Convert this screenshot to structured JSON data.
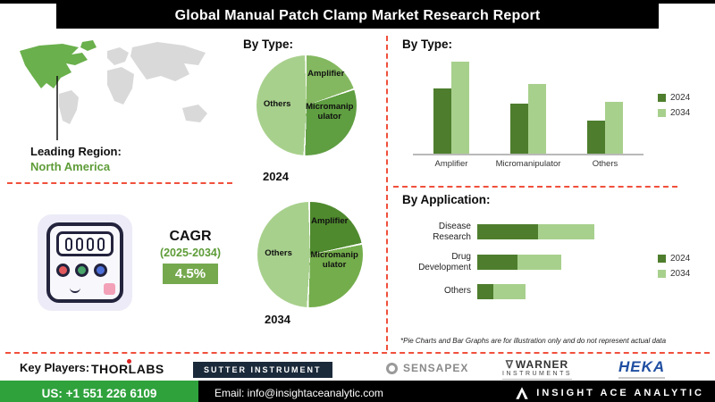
{
  "header": {
    "title": "Global Manual Patch Clamp Market Research Report"
  },
  "left": {
    "leading_region_label": "Leading Region:",
    "leading_region_value": "North America",
    "cagr_label": "CAGR",
    "cagr_period": "(2025-2034)",
    "cagr_value": "4.5%"
  },
  "sections": {
    "pies_title": "By Type:",
    "bars_title": "By Type:",
    "application_title": "By Application:",
    "disclaimer": "*Pie Charts and Bar Graphs are for illustration only and do not represent actual data"
  },
  "chart_data": [
    {
      "id": "pie_2024",
      "type": "pie",
      "title": "By Type:",
      "year_label": "2024",
      "slices": [
        {
          "label": "Amplifier",
          "value": 20,
          "color": "#84b860"
        },
        {
          "label": "Micromanipulator",
          "value": 31,
          "color": "#5f9e41"
        },
        {
          "label": "Others",
          "value": 49,
          "color": "#a8d08d"
        }
      ]
    },
    {
      "id": "pie_2034",
      "type": "pie",
      "title": "By Type:",
      "year_label": "2034",
      "slices": [
        {
          "label": "Amplifier",
          "value": 22,
          "color": "#4f8a2e"
        },
        {
          "label": "Micromanipulator",
          "value": 29,
          "color": "#74ad4c"
        },
        {
          "label": "Others",
          "value": 49,
          "color": "#a8d08d"
        }
      ]
    },
    {
      "id": "bar_by_type",
      "type": "bar",
      "title": "By Type:",
      "categories": [
        "Amplifier",
        "Micromanipulator",
        "Others"
      ],
      "series": [
        {
          "name": "2024",
          "color": "#4e7e2d",
          "values": [
            65,
            50,
            33
          ]
        },
        {
          "name": "2034",
          "color": "#a8d08d",
          "values": [
            92,
            70,
            52
          ]
        }
      ],
      "ylim": [
        0,
        100
      ],
      "grid": false,
      "legend_position": "right"
    },
    {
      "id": "bar_by_application",
      "type": "bar",
      "orientation": "horizontal",
      "title": "By Application:",
      "categories": [
        "Disease Research",
        "Drug Development",
        "Others"
      ],
      "series": [
        {
          "name": "2024",
          "color": "#4e7e2d",
          "values": [
            38,
            25,
            10
          ]
        },
        {
          "name": "2034",
          "color": "#a8d08d",
          "values": [
            35,
            27,
            20
          ]
        }
      ],
      "xlim": [
        0,
        100
      ],
      "legend_position": "right"
    }
  ],
  "key_players": {
    "label": "Key Players:",
    "brands": [
      {
        "name": "THORLABS"
      },
      {
        "name": "SUTTER INSTRUMENT"
      },
      {
        "name": "SENSAPEX"
      },
      {
        "name": "WARNER INSTRUMENTS",
        "line1": "WARNER",
        "line2": "INSTRUMENTS"
      },
      {
        "name": "HEKA"
      }
    ]
  },
  "footer": {
    "phone": "US: +1 551 226 6109",
    "email": "Email: info@insightaceanalytic.com",
    "brand": "INSIGHT ACE ANALYTIC"
  },
  "colors": {
    "accent_green": "#5e9c38",
    "cagr_badge_green": "#76a94e",
    "series_2024": "#4e7e2d",
    "series_2034": "#a8d08d",
    "dashed_line": "#f0503c",
    "footer_green": "#2fa23c",
    "header_bg": "#000000",
    "map_land_gray": "#d9d9d9",
    "map_highlight_green": "#6ab04c",
    "heka_blue": "#1f4ea1"
  }
}
